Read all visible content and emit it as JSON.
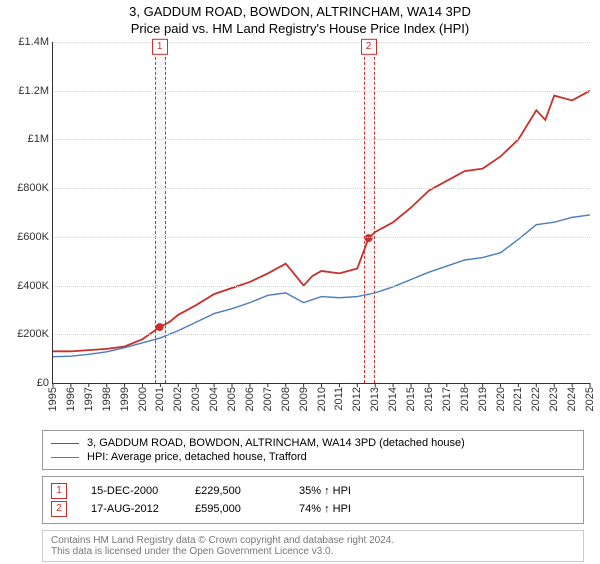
{
  "title_main": "3, GADDUM ROAD, BOWDON, ALTRINCHAM, WA14 3PD",
  "title_sub": "Price paid vs. HM Land Registry's House Price Index (HPI)",
  "chart": {
    "type": "line",
    "background_color": "#ffffff",
    "grid_color": "#d9d9d9",
    "y": {
      "min": 0,
      "max": 1400000,
      "ticks": [
        0,
        200000,
        400000,
        600000,
        800000,
        1000000,
        1200000,
        1400000
      ],
      "tick_labels": [
        "£0",
        "£200K",
        "£400K",
        "£600K",
        "£800K",
        "£1M",
        "£1.2M",
        "£1.4M"
      ],
      "label_fontsize": 11
    },
    "x": {
      "min": 1995,
      "max": 2025,
      "ticks": [
        1995,
        1996,
        1997,
        1998,
        1999,
        2000,
        2001,
        2002,
        2003,
        2004,
        2005,
        2006,
        2007,
        2008,
        2009,
        2010,
        2011,
        2012,
        2013,
        2014,
        2015,
        2016,
        2017,
        2018,
        2019,
        2020,
        2021,
        2022,
        2023,
        2024,
        2025
      ],
      "label_fontsize": 11
    },
    "series": [
      {
        "name": "property",
        "color": "#c9302c",
        "width": 1.8,
        "points": [
          [
            1995,
            130000
          ],
          [
            1996,
            130000
          ],
          [
            1997,
            135000
          ],
          [
            1998,
            140000
          ],
          [
            1999,
            150000
          ],
          [
            2000,
            180000
          ],
          [
            2000.96,
            229500
          ],
          [
            2001.5,
            250000
          ],
          [
            2002,
            280000
          ],
          [
            2003,
            320000
          ],
          [
            2004,
            365000
          ],
          [
            2005,
            390000
          ],
          [
            2006,
            415000
          ],
          [
            2007,
            450000
          ],
          [
            2008,
            490000
          ],
          [
            2008.4,
            455000
          ],
          [
            2009,
            400000
          ],
          [
            2009.5,
            440000
          ],
          [
            2010,
            460000
          ],
          [
            2011,
            450000
          ],
          [
            2012,
            470000
          ],
          [
            2012.63,
            595000
          ],
          [
            2013,
            620000
          ],
          [
            2014,
            660000
          ],
          [
            2015,
            720000
          ],
          [
            2016,
            790000
          ],
          [
            2017,
            830000
          ],
          [
            2018,
            870000
          ],
          [
            2019,
            880000
          ],
          [
            2020,
            930000
          ],
          [
            2021,
            1000000
          ],
          [
            2022,
            1120000
          ],
          [
            2022.5,
            1080000
          ],
          [
            2023,
            1180000
          ],
          [
            2024,
            1160000
          ],
          [
            2025,
            1200000
          ]
        ]
      },
      {
        "name": "hpi",
        "color": "#4a7dbf",
        "width": 1.4,
        "points": [
          [
            1995,
            108000
          ],
          [
            1996,
            110000
          ],
          [
            1997,
            118000
          ],
          [
            1998,
            128000
          ],
          [
            1999,
            145000
          ],
          [
            2000,
            165000
          ],
          [
            2001,
            185000
          ],
          [
            2002,
            215000
          ],
          [
            2003,
            250000
          ],
          [
            2004,
            285000
          ],
          [
            2005,
            305000
          ],
          [
            2006,
            330000
          ],
          [
            2007,
            360000
          ],
          [
            2008,
            370000
          ],
          [
            2009,
            330000
          ],
          [
            2010,
            355000
          ],
          [
            2011,
            350000
          ],
          [
            2012,
            355000
          ],
          [
            2013,
            370000
          ],
          [
            2014,
            395000
          ],
          [
            2015,
            425000
          ],
          [
            2016,
            455000
          ],
          [
            2017,
            480000
          ],
          [
            2018,
            505000
          ],
          [
            2019,
            515000
          ],
          [
            2020,
            535000
          ],
          [
            2021,
            590000
          ],
          [
            2022,
            650000
          ],
          [
            2023,
            660000
          ],
          [
            2024,
            680000
          ],
          [
            2025,
            690000
          ]
        ]
      }
    ],
    "markers": [
      {
        "id": "1",
        "x": 2000.96,
        "y": 229500
      },
      {
        "id": "2",
        "x": 2012.63,
        "y": 595000
      }
    ],
    "band_width_years": 0.5
  },
  "legend": [
    {
      "color": "#c9302c",
      "label": "3, GADDUM ROAD, BOWDON, ALTRINCHAM, WA14 3PD (detached house)"
    },
    {
      "color": "#4a7dbf",
      "label": "HPI: Average price, detached house, Trafford"
    }
  ],
  "sales": [
    {
      "id": "1",
      "date": "15-DEC-2000",
      "price": "£229,500",
      "delta": "35% ↑ HPI"
    },
    {
      "id": "2",
      "date": "17-AUG-2012",
      "price": "£595,000",
      "delta": "74% ↑ HPI"
    }
  ],
  "footer": {
    "line1": "Contains HM Land Registry data © Crown copyright and database right 2024.",
    "line2": "This data is licensed under the Open Government Licence v3.0."
  }
}
